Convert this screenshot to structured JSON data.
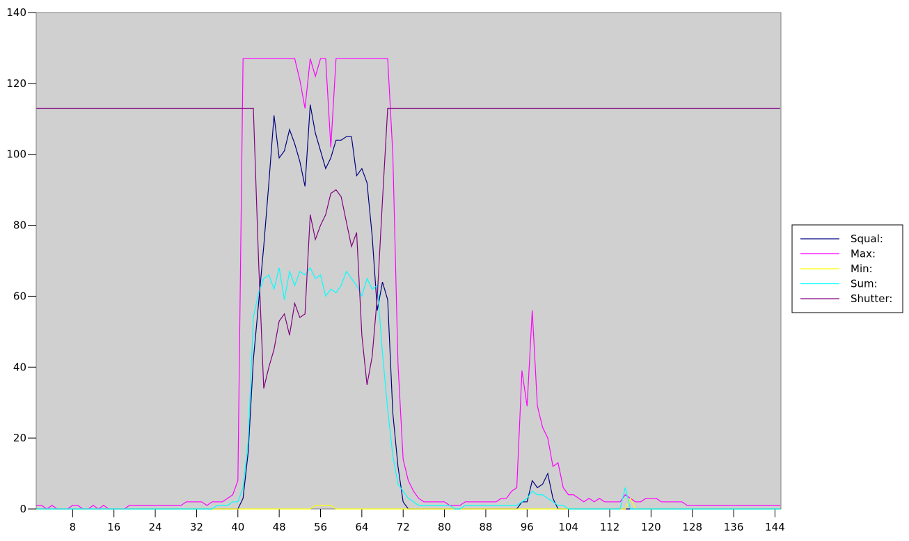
{
  "chart_data": {
    "type": "line",
    "title": "",
    "xlabel": "",
    "ylabel": "",
    "xlim": [
      1,
      145
    ],
    "ylim": [
      0,
      140
    ],
    "y_ticks": [
      0,
      20,
      40,
      60,
      80,
      100,
      120,
      140
    ],
    "x_ticks": [
      8,
      16,
      24,
      32,
      40,
      48,
      56,
      64,
      72,
      80,
      88,
      96,
      104,
      112,
      120,
      128,
      136,
      144
    ],
    "grid": false,
    "plot_background": "#d0d0d0",
    "legend_position": "right",
    "x_start": 1,
    "series": [
      {
        "name": "Squal:",
        "color": "#000080",
        "values": [
          0,
          0,
          0,
          0,
          0,
          0,
          0,
          0,
          0,
          0,
          0,
          0,
          0,
          0,
          0,
          0,
          0,
          0,
          0,
          0,
          0,
          0,
          0,
          0,
          0,
          0,
          0,
          0,
          0,
          0,
          0,
          0,
          0,
          0,
          0,
          0,
          0,
          0,
          0,
          0,
          3,
          16,
          42,
          58,
          74,
          92,
          111,
          99,
          101,
          107,
          103,
          98,
          91,
          114,
          106,
          101,
          96,
          99,
          104,
          104,
          105,
          105,
          94,
          96,
          92,
          77,
          56,
          64,
          59,
          27,
          12,
          2,
          0,
          0,
          0,
          0,
          0,
          0,
          0,
          0,
          0,
          0,
          0,
          0,
          0,
          0,
          0,
          0,
          0,
          0,
          0,
          0,
          0,
          0,
          2,
          2,
          8,
          6,
          7,
          10,
          3,
          0,
          0,
          0,
          0,
          0,
          0,
          0,
          0,
          0,
          0,
          0,
          0,
          0,
          0,
          0,
          0,
          0,
          0,
          0,
          0,
          0,
          0,
          0,
          0,
          0,
          0,
          0,
          0,
          0,
          0,
          0,
          0,
          0,
          0,
          0,
          0,
          0,
          0,
          0,
          0,
          0,
          0,
          0,
          0
        ]
      },
      {
        "name": "Max:",
        "color": "#ff00ff",
        "values": [
          1,
          1,
          0,
          1,
          0,
          0,
          0,
          1,
          1,
          0,
          0,
          1,
          0,
          1,
          0,
          0,
          0,
          0,
          1,
          1,
          1,
          1,
          1,
          1,
          1,
          1,
          1,
          1,
          1,
          2,
          2,
          2,
          2,
          1,
          2,
          2,
          2,
          3,
          4,
          8,
          127,
          127,
          127,
          127,
          127,
          127,
          127,
          127,
          127,
          127,
          127,
          121,
          113,
          127,
          122,
          127,
          127,
          102,
          127,
          127,
          127,
          127,
          127,
          127,
          127,
          127,
          127,
          127,
          127,
          100,
          41,
          14,
          8,
          5,
          3,
          2,
          2,
          2,
          2,
          2,
          1,
          1,
          1,
          2,
          2,
          2,
          2,
          2,
          2,
          2,
          3,
          3,
          5,
          6,
          39,
          29,
          56,
          29,
          23,
          20,
          12,
          13,
          6,
          4,
          4,
          3,
          2,
          3,
          2,
          3,
          2,
          2,
          2,
          2,
          4,
          3,
          2,
          2,
          3,
          3,
          3,
          2,
          2,
          2,
          2,
          2,
          1,
          1,
          1,
          1,
          1,
          1,
          1,
          1,
          1,
          1,
          1,
          1,
          1,
          1,
          1,
          1,
          1,
          1,
          1
        ]
      },
      {
        "name": "Min:",
        "color": "#ffff00",
        "values": [
          0,
          0,
          0,
          0,
          0,
          0,
          0,
          0,
          0,
          0,
          0,
          0,
          0,
          0,
          0,
          0,
          0,
          0,
          0,
          0,
          0,
          0,
          0,
          0,
          0,
          0,
          0,
          0,
          0,
          0,
          0,
          0,
          0,
          0,
          0,
          0,
          0,
          0,
          0,
          0,
          0,
          0,
          0,
          0,
          0,
          0,
          0,
          0,
          0,
          0,
          0,
          0,
          0,
          0,
          1,
          1,
          1,
          1,
          0,
          0,
          0,
          0,
          0,
          0,
          0,
          0,
          0,
          0,
          0,
          0,
          0,
          0,
          0,
          0,
          0,
          0,
          0,
          0,
          0,
          0,
          0,
          0,
          0,
          0,
          0,
          0,
          0,
          0,
          0,
          0,
          0,
          0,
          0,
          0,
          0,
          0,
          0,
          0,
          0,
          0,
          0,
          0,
          0,
          0,
          0,
          0,
          0,
          0,
          0,
          0,
          0,
          0,
          0,
          0,
          0,
          3,
          0,
          0,
          0,
          0,
          0,
          0,
          0,
          0,
          0,
          0,
          0,
          0,
          0,
          0,
          0,
          0,
          0,
          0,
          0,
          0,
          0,
          0,
          0,
          0,
          0,
          0,
          0,
          0,
          0
        ]
      },
      {
        "name": "Sum:",
        "color": "#00ffff",
        "values": [
          0,
          0,
          0,
          0,
          0,
          0,
          0,
          0,
          0,
          0,
          0,
          0,
          0,
          0,
          0,
          0,
          0,
          0,
          0,
          0,
          0,
          0,
          0,
          0,
          0,
          0,
          0,
          0,
          0,
          0,
          0,
          0,
          0,
          0,
          0,
          1,
          1,
          1,
          2,
          2,
          6,
          19,
          54,
          61,
          65,
          66,
          62,
          68,
          59,
          67,
          63,
          67,
          66,
          68,
          65,
          66,
          60,
          62,
          61,
          63,
          67,
          65,
          63,
          60,
          65,
          62,
          63,
          44,
          28,
          15,
          7,
          5,
          3,
          2,
          1,
          1,
          1,
          1,
          1,
          1,
          1,
          0,
          0,
          1,
          1,
          1,
          1,
          1,
          1,
          1,
          1,
          1,
          1,
          1,
          2,
          3,
          5,
          4,
          4,
          3,
          2,
          1,
          1,
          0,
          0,
          0,
          0,
          0,
          0,
          0,
          0,
          0,
          0,
          0,
          6,
          0,
          0,
          0,
          0,
          0,
          0,
          0,
          0,
          0,
          0,
          0,
          0,
          0,
          0,
          0,
          0,
          0,
          0,
          0,
          0,
          0,
          0,
          0,
          0,
          0,
          0,
          0,
          0,
          0,
          0
        ]
      },
      {
        "name": "Shutter:",
        "color": "#800080",
        "values": [
          113,
          113,
          113,
          113,
          113,
          113,
          113,
          113,
          113,
          113,
          113,
          113,
          113,
          113,
          113,
          113,
          113,
          113,
          113,
          113,
          113,
          113,
          113,
          113,
          113,
          113,
          113,
          113,
          113,
          113,
          113,
          113,
          113,
          113,
          113,
          113,
          113,
          113,
          113,
          113,
          113,
          113,
          113,
          70,
          34,
          40,
          45,
          53,
          55,
          49,
          58,
          54,
          55,
          83,
          76,
          80,
          83,
          89,
          90,
          88,
          81,
          74,
          78,
          49,
          35,
          43,
          60,
          87,
          113,
          113,
          113,
          113,
          113,
          113,
          113,
          113,
          113,
          113,
          113,
          113,
          113,
          113,
          113,
          113,
          113,
          113,
          113,
          113,
          113,
          113,
          113,
          113,
          113,
          113,
          113,
          113,
          113,
          113,
          113,
          113,
          113,
          113,
          113,
          113,
          113,
          113,
          113,
          113,
          113,
          113,
          113,
          113,
          113,
          113,
          113,
          113,
          113,
          113,
          113,
          113,
          113,
          113,
          113,
          113,
          113,
          113,
          113,
          113,
          113,
          113,
          113,
          113,
          113,
          113,
          113,
          113,
          113,
          113,
          113,
          113,
          113,
          113,
          113,
          113,
          113
        ]
      }
    ]
  }
}
